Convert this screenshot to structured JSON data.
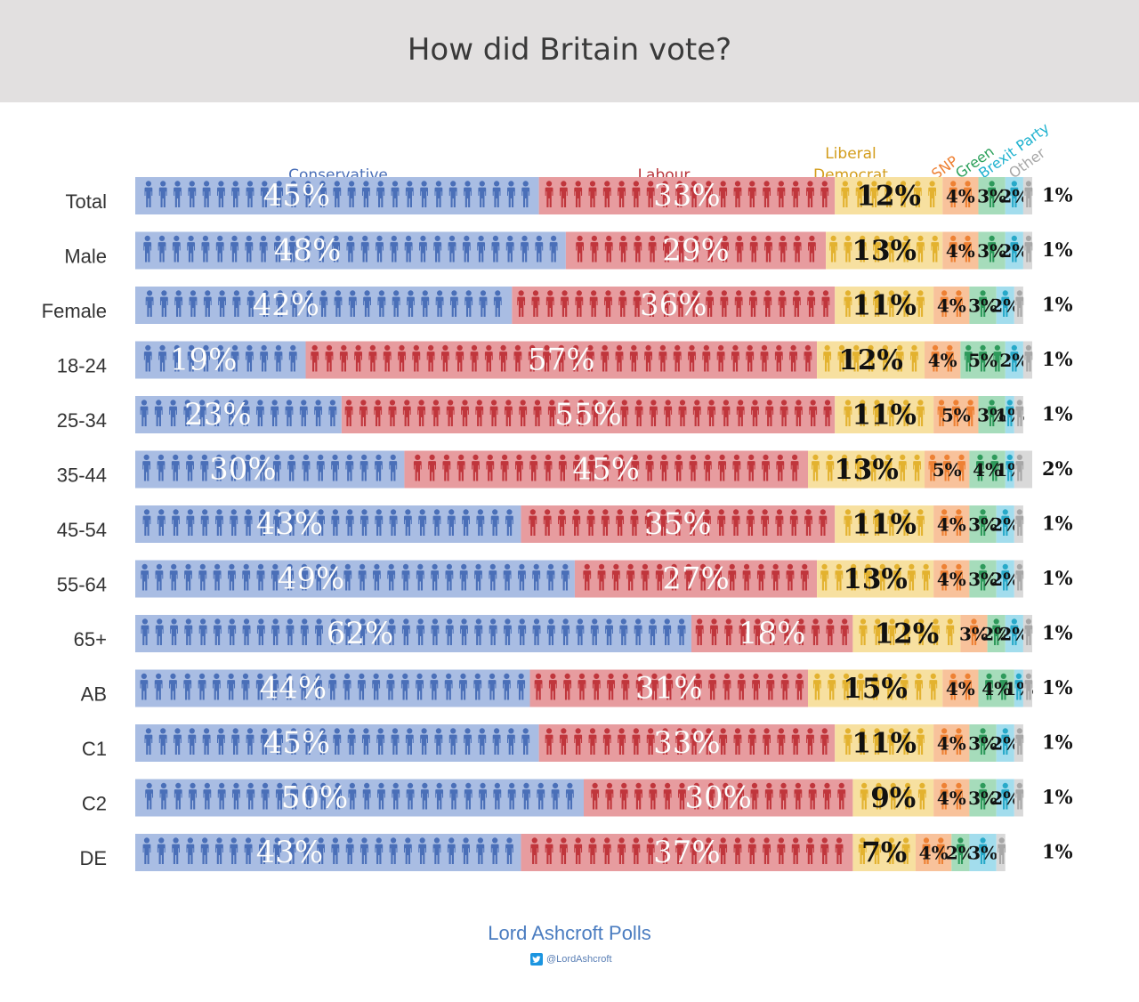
{
  "title": "How did Britain vote?",
  "footer": {
    "brand": "Lord Ashcroft Polls",
    "handle": "@LordAshcroft",
    "icon": "twitter-icon"
  },
  "chart_data": {
    "type": "bar",
    "stacked": true,
    "orientation": "horizontal",
    "title": "How did Britain vote?",
    "categories": [
      "Total",
      "Male",
      "Female",
      "18-24",
      "25-34",
      "35-44",
      "45-54",
      "55-64",
      "65+",
      "AB",
      "C1",
      "C2",
      "DE"
    ],
    "series": [
      {
        "name": "Conservative",
        "color": "#4a6fb8",
        "values": [
          45,
          48,
          42,
          19,
          23,
          30,
          43,
          49,
          62,
          44,
          45,
          50,
          43
        ]
      },
      {
        "name": "Labour",
        "color": "#c0363c",
        "values": [
          33,
          29,
          36,
          57,
          55,
          45,
          35,
          27,
          18,
          31,
          33,
          30,
          37
        ]
      },
      {
        "name": "Liberal Democrat",
        "label_lines": [
          "Liberal",
          "Democrat"
        ],
        "color": "#e3b22f",
        "values": [
          12,
          13,
          11,
          12,
          11,
          13,
          11,
          13,
          12,
          15,
          11,
          9,
          7
        ]
      },
      {
        "name": "SNP",
        "color": "#ee8134",
        "values": [
          4,
          4,
          4,
          4,
          5,
          5,
          4,
          4,
          3,
          4,
          4,
          4,
          4
        ]
      },
      {
        "name": "Green",
        "color": "#2e9a5b",
        "values": [
          3,
          3,
          3,
          5,
          3,
          4,
          3,
          3,
          2,
          4,
          3,
          3,
          2
        ]
      },
      {
        "name": "Brexit Party",
        "color": "#27a9c9",
        "values": [
          2,
          2,
          2,
          2,
          1,
          1,
          2,
          2,
          2,
          1,
          2,
          2,
          3
        ]
      },
      {
        "name": "Other",
        "color": "#a7a7a7",
        "values": [
          1,
          1,
          1,
          1,
          1,
          2,
          1,
          1,
          1,
          1,
          1,
          1,
          1
        ]
      }
    ],
    "grid": false,
    "legend": "top"
  }
}
